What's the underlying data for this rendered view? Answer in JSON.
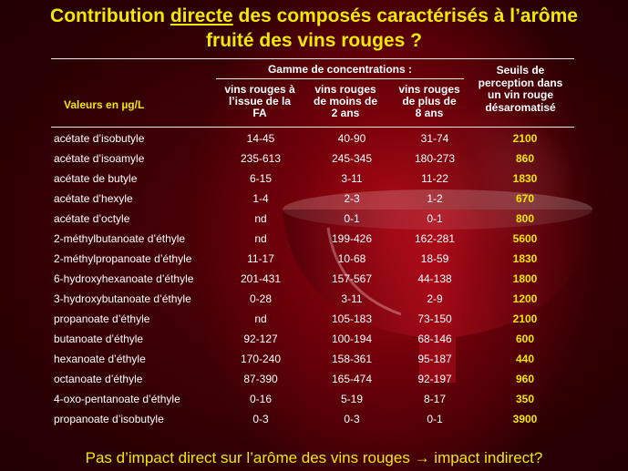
{
  "title": {
    "part1": "Contribution ",
    "underlined": "directe",
    "part2": " des composés caractérisés à l’arôme",
    "line2": "fruité des vins rouges ?"
  },
  "table": {
    "row_label_header": "Valeurs en µg/L",
    "group_header": "Gamme de concentrations :",
    "columns": [
      [
        "vins rouges à",
        "l’issue de la",
        "FA"
      ],
      [
        "vins rouges",
        "de moins de",
        "2 ans"
      ],
      [
        "vins rouges",
        "de plus de",
        "8 ans"
      ]
    ],
    "threshold_header": [
      "Seuils de",
      "perception dans",
      "un vin rouge",
      "désaromatisé"
    ],
    "rows": [
      {
        "name": "acétate d’isobutyle",
        "fa": "14-45",
        "lt2": "40-90",
        "gt8": "31-74",
        "seuil": "2100"
      },
      {
        "name": "acétate d’isoamyle",
        "fa": "235-613",
        "lt2": "245-345",
        "gt8": "180-273",
        "seuil": "860"
      },
      {
        "name": "acétate de butyle",
        "fa": "6-15",
        "lt2": "3-11",
        "gt8": "11-22",
        "seuil": "1830"
      },
      {
        "name": "acétate d’hexyle",
        "fa": "1-4",
        "lt2": "2-3",
        "gt8": "1-2",
        "seuil": "670"
      },
      {
        "name": "acétate d’octyle",
        "fa": "nd",
        "lt2": "0-1",
        "gt8": "0-1",
        "seuil": "800"
      },
      {
        "name": "2-méthylbutanoate d’éthyle",
        "fa": "nd",
        "lt2": "199-426",
        "gt8": "162-281",
        "seuil": "5600"
      },
      {
        "name": "2-méthylpropanoate d’éthyle",
        "fa": "11-17",
        "lt2": "10-68",
        "gt8": "18-59",
        "seuil": "1830"
      },
      {
        "name": "6-hydroxyhexanoate d’éthyle",
        "fa": "201-431",
        "lt2": "157-567",
        "gt8": "44-138",
        "seuil": "1800"
      },
      {
        "name": "3-hydroxybutanoate d’éthyle",
        "fa": "0-28",
        "lt2": "3-11",
        "gt8": "2-9",
        "seuil": "1200"
      },
      {
        "name": "propanoate d’éthyle",
        "fa": "nd",
        "lt2": "105-183",
        "gt8": "73-150",
        "seuil": "2100"
      },
      {
        "name": "butanoate d’éthyle",
        "fa": "92-127",
        "lt2": "100-194",
        "gt8": "68-146",
        "seuil": "600"
      },
      {
        "name": "hexanoate d’éthyle",
        "fa": "170-240",
        "lt2": "158-361",
        "gt8": "95-187",
        "seuil": "440"
      },
      {
        "name": "octanoate d’éthyle",
        "fa": "87-390",
        "lt2": "165-474",
        "gt8": "92-197",
        "seuil": "960"
      },
      {
        "name": "4-oxo-pentanoate d’éthyle",
        "fa": "0-16",
        "lt2": "5-19",
        "gt8": "8-17",
        "seuil": "350"
      },
      {
        "name": "propanoate d’isobutyle",
        "fa": "0-3",
        "lt2": "0-3",
        "gt8": "0-1",
        "seuil": "3900"
      }
    ]
  },
  "footer": "Pas d’impact direct sur l’arôme des vins rouges → impact indirect?",
  "colors": {
    "title": "#f2e800",
    "background": "#2a0003",
    "wine": "#b00a14",
    "text": "#ffffff"
  },
  "icons": {
    "background": "wine-glass-image"
  }
}
